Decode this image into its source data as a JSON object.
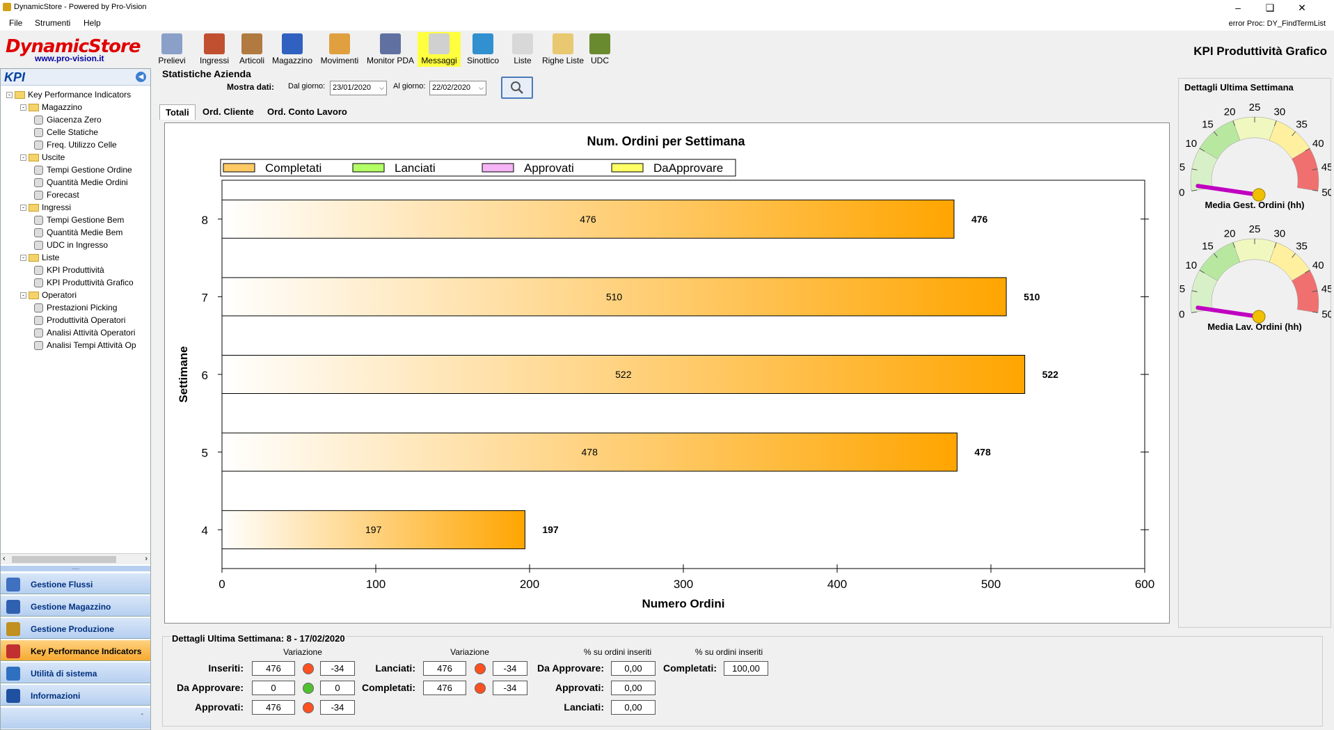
{
  "window": {
    "title": "DynamicStore - Powered by Pro-Vision"
  },
  "menu": {
    "items": [
      "File",
      "Strumenti",
      "Help"
    ],
    "error_text": "error Proc: DY_FindTermList"
  },
  "logo": {
    "name": "DynamicStore",
    "url": "www.pro-vision.it"
  },
  "toolbar": {
    "buttons": [
      {
        "label": "Prelievi",
        "icon": "clipboard-icon",
        "color": "#8aa0c8"
      },
      {
        "label": "Ingressi",
        "icon": "house-arrow-icon",
        "color": "#c05030"
      },
      {
        "label": "Articoli",
        "icon": "boxes-icon",
        "color": "#b07a40"
      },
      {
        "label": "Magazzino",
        "icon": "warehouse-icon",
        "color": "#3060c0"
      },
      {
        "label": "Movimenti",
        "icon": "book-icon",
        "color": "#e0a040"
      },
      {
        "label": "Monitor PDA",
        "icon": "pda-icon",
        "color": "#6070a0"
      },
      {
        "label": "Messaggi",
        "icon": "envelope-icon",
        "color": "#d0d0d0"
      },
      {
        "label": "Sinottico",
        "icon": "monitor-icon",
        "color": "#3090d0"
      },
      {
        "label": "Liste",
        "icon": "document-icon",
        "color": "#d8d8d8"
      },
      {
        "label": "Righe Liste",
        "icon": "note-icon",
        "color": "#e8c870"
      },
      {
        "label": "UDC",
        "icon": "pallet-icon",
        "color": "#6a8a30"
      }
    ],
    "page_title": "KPI Produttività Grafico"
  },
  "sidebar": {
    "header": "KPI",
    "tree": [
      {
        "label": "Key Performance Indicators",
        "level": 0,
        "type": "folder"
      },
      {
        "label": "Magazzino",
        "level": 1,
        "type": "folder"
      },
      {
        "label": "Giacenza Zero",
        "level": 2,
        "type": "leaf"
      },
      {
        "label": "Celle Statiche",
        "level": 2,
        "type": "leaf"
      },
      {
        "label": "Freq. Utilizzo Celle",
        "level": 2,
        "type": "leaf"
      },
      {
        "label": "Uscite",
        "level": 1,
        "type": "folder"
      },
      {
        "label": "Tempi Gestione Ordine",
        "level": 2,
        "type": "leaf"
      },
      {
        "label": "Quantità Medie Ordini",
        "level": 2,
        "type": "leaf"
      },
      {
        "label": "Forecast",
        "level": 2,
        "type": "leaf"
      },
      {
        "label": "Ingressi",
        "level": 1,
        "type": "folder"
      },
      {
        "label": "Tempi Gestione Bem",
        "level": 2,
        "type": "leaf"
      },
      {
        "label": "Quantità Medie Bem",
        "level": 2,
        "type": "leaf"
      },
      {
        "label": "UDC in Ingresso",
        "level": 2,
        "type": "leaf"
      },
      {
        "label": "Liste",
        "level": 1,
        "type": "folder"
      },
      {
        "label": "KPI Produttività",
        "level": 2,
        "type": "leaf"
      },
      {
        "label": "KPI Produttività Grafico",
        "level": 2,
        "type": "leaf"
      },
      {
        "label": "Operatori",
        "level": 1,
        "type": "folder"
      },
      {
        "label": "Prestazioni Picking",
        "level": 2,
        "type": "leaf"
      },
      {
        "label": "Produttività Operatori",
        "level": 2,
        "type": "leaf"
      },
      {
        "label": "Analisi Attività Operatori",
        "level": 2,
        "type": "leaf"
      },
      {
        "label": "Analisi Tempi Attività Op",
        "level": 2,
        "type": "leaf"
      }
    ],
    "nav": [
      {
        "label": "Gestione Flussi",
        "color": "#4070c0",
        "active": false
      },
      {
        "label": "Gestione Magazzino",
        "color": "#3060b0",
        "active": false
      },
      {
        "label": "Gestione Produzione",
        "color": "#c09020",
        "active": false
      },
      {
        "label": "Key Performance Indicators",
        "color": "#c03030",
        "active": true
      },
      {
        "label": "Utilità di sistema",
        "color": "#3070c0",
        "active": false
      },
      {
        "label": "Informazioni",
        "color": "#2050a0",
        "active": false
      }
    ]
  },
  "filters": {
    "section_title": "Statistiche Azienda",
    "show_label": "Mostra dati:",
    "from_label": "Dal giorno:",
    "from_value": "23/01/2020",
    "to_label": "Al giorno:",
    "to_value": "22/02/2020"
  },
  "tabs": [
    "Totali",
    "Ord. Cliente",
    "Ord. Conto Lavoro"
  ],
  "chart_data": {
    "type": "bar",
    "orientation": "horizontal",
    "title": "Num. Ordini per Settimana",
    "xlabel": "Numero Ordini",
    "ylabel": "Settimane",
    "categories": [
      "8",
      "7",
      "6",
      "5",
      "4"
    ],
    "series": [
      {
        "name": "Completati",
        "values": [
          476,
          510,
          522,
          478,
          197
        ],
        "color": "#ffa500"
      },
      {
        "name": "Lanciati",
        "values": [
          0,
          0,
          0,
          0,
          0
        ],
        "color": "#7fff00"
      },
      {
        "name": "Approvati",
        "values": [
          0,
          0,
          0,
          0,
          0
        ],
        "color": "#ee82ee"
      },
      {
        "name": "DaApprovare",
        "values": [
          0,
          0,
          0,
          0,
          0
        ],
        "color": "#ffff00"
      }
    ],
    "xlim": [
      0,
      600
    ],
    "xticks": [
      0,
      100,
      200,
      300,
      400,
      500,
      600
    ],
    "legend": "top"
  },
  "gauges": {
    "title": "Dettagli Ultima Settimana",
    "ticks": [
      "0",
      "5",
      "10",
      "15",
      "20",
      "25",
      "30",
      "35",
      "40",
      "45",
      "50"
    ],
    "items": [
      {
        "label": "Media Gest. Ordini (hh)",
        "value": 1,
        "needle_color": "#c000c0"
      },
      {
        "label": "Media Lav. Ordini (hh)",
        "value": 1,
        "needle_color": "#c000c0"
      }
    ]
  },
  "details": {
    "title": "Dettagli Ultima Settimana: 8 - 17/02/2020",
    "variazione": "Variazione",
    "pct_header": "% su ordini inseriti",
    "rows_left": [
      {
        "label": "Inseriti:",
        "value": "476",
        "dot": "#ff5020",
        "delta": "-34"
      },
      {
        "label": "Da Approvare:",
        "value": "0",
        "dot": "#50c030",
        "delta": "0"
      },
      {
        "label": "Approvati:",
        "value": "476",
        "dot": "#ff5020",
        "delta": "-34"
      }
    ],
    "rows_mid": [
      {
        "label": "Lanciati:",
        "value": "476",
        "dot": "#ff5020",
        "delta": "-34"
      },
      {
        "label": "Completati:",
        "value": "476",
        "dot": "#ff5020",
        "delta": "-34"
      }
    ],
    "rows_pct": [
      {
        "label": "Da Approvare:",
        "value": "0,00"
      },
      {
        "label": "Approvati:",
        "value": "0,00"
      },
      {
        "label": "Lanciati:",
        "value": "0,00"
      }
    ],
    "completed_pct": {
      "label": "Completati:",
      "value": "100,00"
    }
  }
}
